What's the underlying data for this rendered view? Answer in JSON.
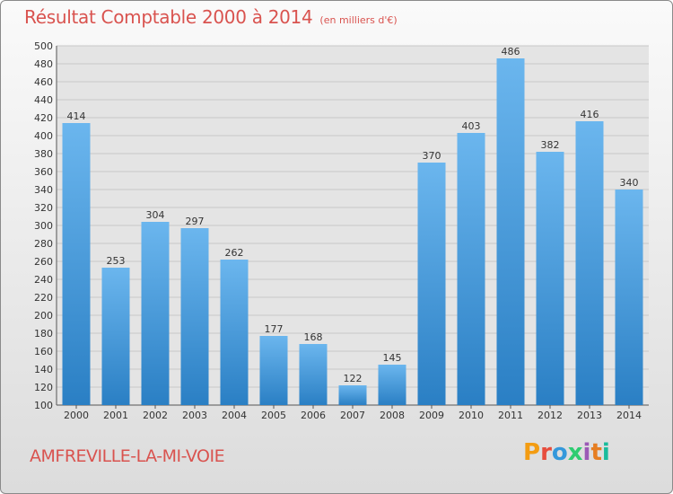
{
  "title": "Résultat Comptable 2000 à 2014",
  "subtitle": "(en milliers d'€)",
  "commune": "AMFREVILLE-LA-MI-VOIE",
  "logo": {
    "text": "Proxiti",
    "colors": [
      "#f39c12",
      "#e74c3c",
      "#3498db",
      "#2ecc71",
      "#9b59b6",
      "#e67e22",
      "#1abc9c"
    ]
  },
  "colors": {
    "title": "#d9534f",
    "bar_light": "#6bb6ee",
    "bar_dark": "#2a7fc4",
    "grid": "#c8c8c8"
  },
  "chart_data": {
    "type": "bar",
    "categories": [
      "2000",
      "2001",
      "2002",
      "2003",
      "2004",
      "2005",
      "2006",
      "2007",
      "2008",
      "2009",
      "2010",
      "2011",
      "2012",
      "2013",
      "2014"
    ],
    "values": [
      414,
      253,
      304,
      297,
      262,
      177,
      168,
      122,
      145,
      370,
      403,
      486,
      382,
      416,
      340
    ],
    "ylim": [
      100,
      500
    ],
    "yticks": [
      100,
      120,
      140,
      160,
      180,
      200,
      220,
      240,
      260,
      280,
      300,
      320,
      340,
      360,
      380,
      400,
      420,
      440,
      460,
      480,
      500
    ],
    "grid": true
  }
}
